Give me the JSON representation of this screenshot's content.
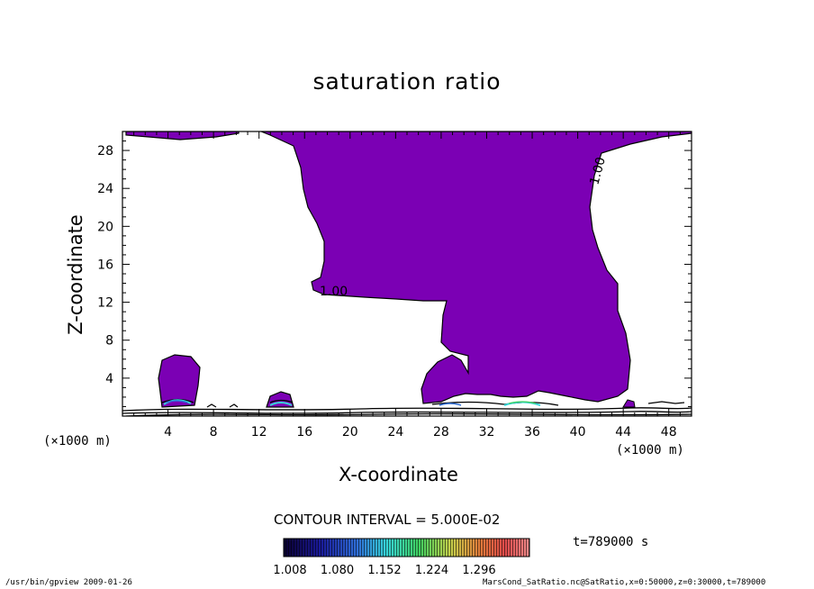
{
  "chart_data": {
    "type": "contour",
    "title": "saturation ratio",
    "xlabel": "X-coordinate",
    "ylabel": "Z-coordinate",
    "x_unit": "(×1000 m)",
    "y_unit": "(×1000 m)",
    "xlim": [
      0,
      50
    ],
    "ylim": [
      0,
      30
    ],
    "x_ticks": [
      4,
      8,
      12,
      16,
      20,
      24,
      28,
      32,
      36,
      40,
      44,
      48
    ],
    "y_ticks": [
      4,
      8,
      12,
      16,
      20,
      24,
      28
    ],
    "contour_interval_text": "CONTOUR INTERVAL = 5.000E-02",
    "colorbar_ticks": [
      "1.008",
      "1.080",
      "1.152",
      "1.224",
      "1.296"
    ],
    "contour_labels": [
      "1.00",
      "1.00"
    ],
    "time_text": "t=789000 s",
    "colors": {
      "fill": "#7b00b4",
      "colorbar": [
        "#0a0030",
        "#1a1a9a",
        "#2f6fd8",
        "#37d6d8",
        "#3fd060",
        "#c6d04a",
        "#e27a3a",
        "#e04a4a",
        "#f08a8a"
      ]
    }
  },
  "footer": {
    "left": "/usr/bin/gpview  2009-01-26",
    "right": "MarsCond_SatRatio.nc@SatRatio,x=0:50000,z=0:30000,t=789000"
  }
}
